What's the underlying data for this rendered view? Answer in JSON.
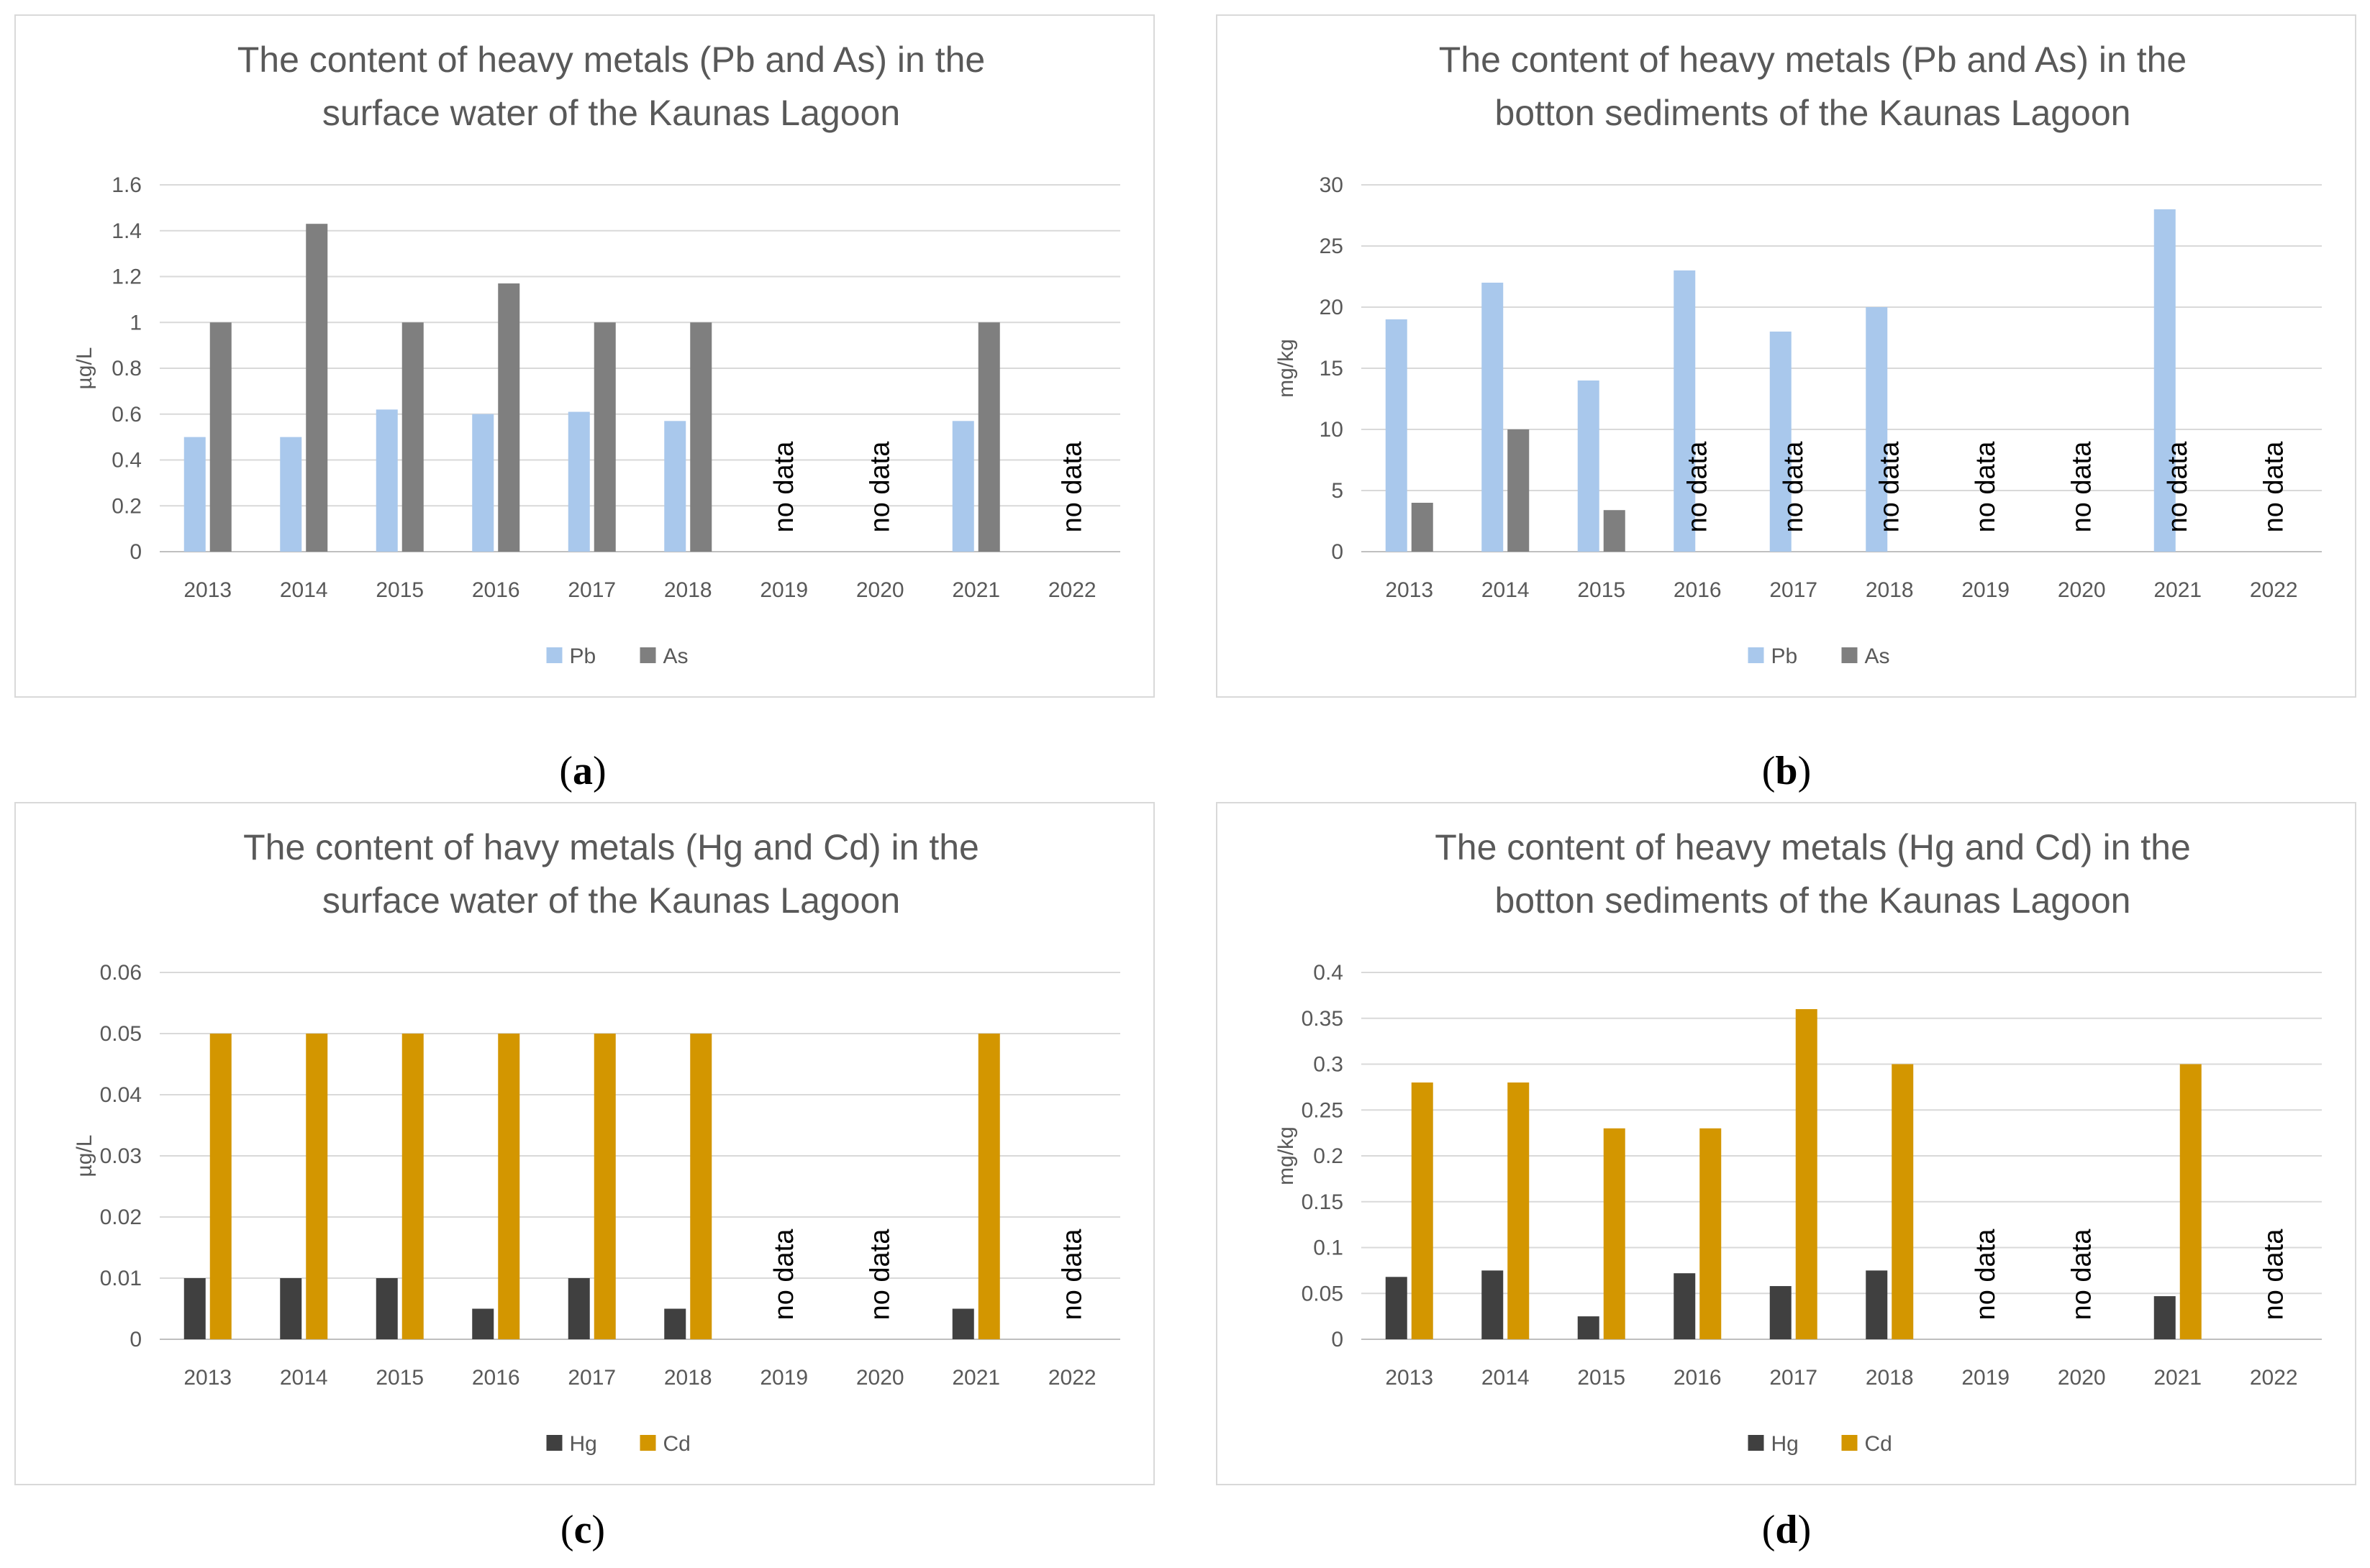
{
  "chart_data": [
    {
      "id": "a",
      "type": "bar",
      "title_lines": [
        "The content of heavy metals (Pb and As) in the",
        "surface water of the Kaunas Lagoon"
      ],
      "ylabel": "µg/L",
      "xlabel": "",
      "ylim": [
        0,
        1.6
      ],
      "yticks": [
        "0",
        "0.2",
        "0.4",
        "0.6",
        "0.8",
        "1",
        "1.2",
        "1.4",
        "1.6"
      ],
      "grid": true,
      "legend_position": "bottom",
      "categories": [
        "2013",
        "2014",
        "2015",
        "2016",
        "2017",
        "2018",
        "2019",
        "2020",
        "2021",
        "2022"
      ],
      "series": [
        {
          "name": "Pb",
          "color": "#a9c8ec",
          "values": [
            0.5,
            0.5,
            0.62,
            0.6,
            0.61,
            0.57,
            null,
            null,
            0.57,
            null
          ]
        },
        {
          "name": "As",
          "color": "#7f7f7f",
          "values": [
            1.0,
            1.43,
            1.0,
            1.17,
            1.0,
            1.0,
            null,
            null,
            1.0,
            null
          ]
        }
      ],
      "annotations": [
        {
          "category": "2019",
          "text": "no data"
        },
        {
          "category": "2020",
          "text": "no data"
        },
        {
          "category": "2022",
          "text": "no data"
        }
      ],
      "caption": "(a)"
    },
    {
      "id": "b",
      "type": "bar",
      "title_lines": [
        "The content of heavy metals (Pb and As) in the",
        "botton sediments of the Kaunas Lagoon"
      ],
      "ylabel": "mg/kg",
      "xlabel": "",
      "ylim": [
        0,
        30
      ],
      "yticks": [
        "0",
        "5",
        "10",
        "15",
        "20",
        "25",
        "30"
      ],
      "grid": true,
      "legend_position": "bottom",
      "categories": [
        "2013",
        "2014",
        "2015",
        "2016",
        "2017",
        "2018",
        "2019",
        "2020",
        "2021",
        "2022"
      ],
      "series": [
        {
          "name": "Pb",
          "color": "#a9c8ec",
          "values": [
            19,
            22,
            14,
            23,
            18,
            20,
            null,
            null,
            28,
            null
          ]
        },
        {
          "name": "As",
          "color": "#7f7f7f",
          "values": [
            4,
            10,
            3.4,
            null,
            null,
            null,
            null,
            null,
            null,
            null
          ]
        }
      ],
      "annotations": [
        {
          "category": "2016",
          "text": "no data"
        },
        {
          "category": "2017",
          "text": "no data"
        },
        {
          "category": "2018",
          "text": "no data"
        },
        {
          "category": "2019",
          "text": "no data"
        },
        {
          "category": "2020",
          "text": "no data"
        },
        {
          "category": "2021",
          "text": "no data"
        },
        {
          "category": "2022",
          "text": "no data"
        }
      ],
      "caption": "(b)"
    },
    {
      "id": "c",
      "type": "bar",
      "title_lines": [
        "The content of havy metals (Hg and Cd) in the",
        "surface water of the Kaunas Lagoon"
      ],
      "ylabel": "µg/L",
      "xlabel": "",
      "ylim": [
        0,
        0.06
      ],
      "yticks": [
        "0",
        "0.01",
        "0.02",
        "0.03",
        "0.04",
        "0.05",
        "0.06"
      ],
      "grid": true,
      "legend_position": "bottom",
      "categories": [
        "2013",
        "2014",
        "2015",
        "2016",
        "2017",
        "2018",
        "2019",
        "2020",
        "2021",
        "2022"
      ],
      "series": [
        {
          "name": "Hg",
          "color": "#404040",
          "values": [
            0.01,
            0.01,
            0.01,
            0.005,
            0.01,
            0.005,
            null,
            null,
            0.005,
            null
          ]
        },
        {
          "name": "Cd",
          "color": "#d39600",
          "values": [
            0.05,
            0.05,
            0.05,
            0.05,
            0.05,
            0.05,
            null,
            null,
            0.05,
            null
          ]
        }
      ],
      "annotations": [
        {
          "category": "2019",
          "text": "no data"
        },
        {
          "category": "2020",
          "text": "no data"
        },
        {
          "category": "2022",
          "text": "no data"
        }
      ],
      "caption": "(c)"
    },
    {
      "id": "d",
      "type": "bar",
      "title_lines": [
        "The content of heavy metals (Hg and Cd) in the",
        "botton sediments of the Kaunas Lagoon"
      ],
      "ylabel": "mg/kg",
      "xlabel": "",
      "ylim": [
        0,
        0.4
      ],
      "yticks": [
        "0",
        "0.05",
        "0.1",
        "0.15",
        "0.2",
        "0.25",
        "0.3",
        "0.35",
        "0.4"
      ],
      "grid": true,
      "legend_position": "bottom",
      "categories": [
        "2013",
        "2014",
        "2015",
        "2016",
        "2017",
        "2018",
        "2019",
        "2020",
        "2021",
        "2022"
      ],
      "series": [
        {
          "name": "Hg",
          "color": "#404040",
          "values": [
            0.068,
            0.075,
            0.025,
            0.072,
            0.058,
            0.075,
            null,
            null,
            0.047,
            null
          ]
        },
        {
          "name": "Cd",
          "color": "#d39600",
          "values": [
            0.28,
            0.28,
            0.23,
            0.23,
            0.36,
            0.3,
            null,
            null,
            0.3,
            null
          ]
        }
      ],
      "annotations": [
        {
          "category": "2019",
          "text": "no data"
        },
        {
          "category": "2020",
          "text": "no data"
        },
        {
          "category": "2022",
          "text": "no data"
        }
      ],
      "caption": "(d)"
    }
  ],
  "captions": {
    "a": "a",
    "b": "b",
    "c": "c",
    "d": "d"
  }
}
